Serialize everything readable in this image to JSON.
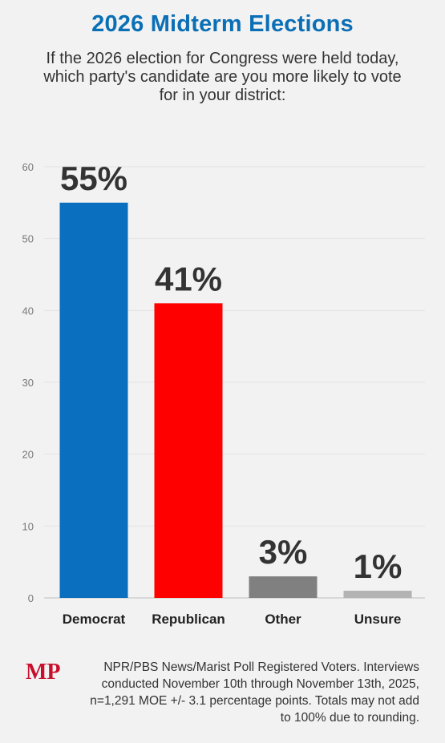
{
  "header": {
    "title": "2026 Midterm Elections",
    "subtitle": "If the 2026 election for Congress were held today, which party's candidate are you more likely to vote for in your district:"
  },
  "chart_data": {
    "type": "bar",
    "categories": [
      "Democrat",
      "Republican",
      "Other",
      "Unsure"
    ],
    "values": [
      55,
      41,
      3,
      1
    ],
    "data_labels": [
      "55%",
      "41%",
      "3%",
      "1%"
    ],
    "colors": [
      "#0b6fbf",
      "#ff0000",
      "#808080",
      "#b3b3b3"
    ],
    "ylim": [
      0,
      60
    ],
    "yticks": [
      0,
      10,
      20,
      30,
      40,
      50,
      60
    ],
    "grid": true,
    "legend": "none"
  },
  "footer": {
    "logo": "MP",
    "source": "NPR/PBS News/Marist Poll Registered Voters. Interviews conducted November 10th through November 13th, 2025, n=1,291 MOE +/- 3.1 percentage points. Totals may not add to 100% due to rounding."
  }
}
